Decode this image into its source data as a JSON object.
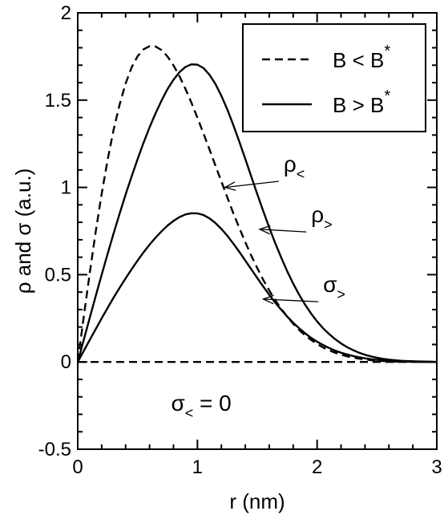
{
  "chart_data": {
    "type": "line",
    "title": "",
    "xlabel": "r (nm)",
    "ylabel": "ρ and σ (a.u.)",
    "xlim": [
      0,
      3
    ],
    "ylim": [
      -0.5,
      2
    ],
    "xticks": [
      0,
      1,
      2,
      3
    ],
    "xtick_labels": [
      "0",
      "1",
      "2",
      "3"
    ],
    "yticks": [
      -0.5,
      0,
      0.5,
      1,
      1.5,
      2
    ],
    "ytick_labels": [
      "-0.5",
      "0",
      "0.5",
      "1",
      "1.5",
      "2"
    ],
    "grid": false,
    "legend_position": "top-right",
    "series": [
      {
        "name": "B < B*",
        "style": "dashed",
        "color": "#000000",
        "x": [
          0,
          0.05,
          0.1,
          0.15,
          0.2,
          0.25,
          0.3,
          0.35,
          0.4,
          0.45,
          0.5,
          0.55,
          0.6,
          0.65,
          0.7,
          0.75,
          0.8,
          0.85,
          0.9,
          0.95,
          1.0,
          1.05,
          1.1,
          1.15,
          1.2,
          1.25,
          1.3,
          1.35,
          1.4,
          1.45,
          1.5,
          1.55,
          1.6,
          1.65,
          1.7,
          1.75,
          1.8,
          1.85,
          1.9,
          1.95,
          2.0,
          2.05,
          2.1,
          2.15,
          2.2,
          2.25,
          2.3,
          2.35,
          2.4,
          2.45,
          2.5,
          2.55,
          2.6,
          2.65,
          2.7,
          2.75,
          2.8,
          2.85,
          2.9,
          2.95,
          3.0
        ],
        "y": [
          0.0,
          0.258,
          0.508,
          0.746,
          0.964,
          1.159,
          1.331,
          1.475,
          1.595,
          1.687,
          1.751,
          1.791,
          1.809,
          1.807,
          1.787,
          1.75,
          1.699,
          1.637,
          1.564,
          1.485,
          1.399,
          1.31,
          1.219,
          1.126,
          1.034,
          0.942,
          0.852,
          0.768,
          0.686,
          0.609,
          0.538,
          0.47,
          0.41,
          0.354,
          0.304,
          0.26,
          0.219,
          0.183,
          0.152,
          0.126,
          0.103,
          0.083,
          0.067,
          0.053,
          0.042,
          0.032,
          0.025,
          0.019,
          0.014,
          0.01,
          0.007,
          0.005,
          0.004,
          0.002,
          0.002,
          0.001,
          0.001,
          0.0,
          0.0,
          0.0,
          0.0
        ]
      },
      {
        "name": "B > B*",
        "style": "solid",
        "color": "#000000",
        "x": [
          0,
          0.05,
          0.1,
          0.15,
          0.2,
          0.25,
          0.3,
          0.35,
          0.4,
          0.45,
          0.5,
          0.55,
          0.6,
          0.65,
          0.7,
          0.75,
          0.8,
          0.85,
          0.9,
          0.95,
          1.0,
          1.05,
          1.1,
          1.15,
          1.2,
          1.25,
          1.3,
          1.35,
          1.4,
          1.45,
          1.5,
          1.55,
          1.6,
          1.65,
          1.7,
          1.75,
          1.8,
          1.85,
          1.9,
          1.95,
          2.0,
          2.05,
          2.1,
          2.15,
          2.2,
          2.25,
          2.3,
          2.35,
          2.4,
          2.45,
          2.5,
          2.55,
          2.6,
          2.65,
          2.7,
          2.75,
          2.8,
          2.85,
          2.9,
          2.95,
          3.0
        ],
        "y": [
          0.0,
          0.126,
          0.252,
          0.377,
          0.5,
          0.62,
          0.737,
          0.85,
          0.959,
          1.062,
          1.162,
          1.256,
          1.344,
          1.424,
          1.497,
          1.563,
          1.617,
          1.66,
          1.69,
          1.705,
          1.703,
          1.684,
          1.646,
          1.593,
          1.525,
          1.446,
          1.357,
          1.262,
          1.163,
          1.062,
          0.962,
          0.864,
          0.77,
          0.681,
          0.598,
          0.52,
          0.449,
          0.385,
          0.328,
          0.277,
          0.232,
          0.193,
          0.16,
          0.131,
          0.106,
          0.085,
          0.068,
          0.053,
          0.041,
          0.032,
          0.024,
          0.018,
          0.013,
          0.01,
          0.007,
          0.005,
          0.004,
          0.003,
          0.002,
          0.001,
          0.0
        ]
      },
      {
        "name": "σ>",
        "style": "solid",
        "color": "#000000",
        "x": [
          0,
          0.05,
          0.1,
          0.15,
          0.2,
          0.25,
          0.3,
          0.35,
          0.4,
          0.45,
          0.5,
          0.55,
          0.6,
          0.65,
          0.7,
          0.75,
          0.8,
          0.85,
          0.9,
          0.95,
          1.0,
          1.05,
          1.1,
          1.15,
          1.2,
          1.25,
          1.3,
          1.35,
          1.4,
          1.45,
          1.5,
          1.55,
          1.6,
          1.65,
          1.7,
          1.75,
          1.8,
          1.85,
          1.9,
          1.95,
          2.0,
          2.05,
          2.1,
          2.15,
          2.2,
          2.25,
          2.3,
          2.35,
          2.4,
          2.45,
          2.5,
          2.55,
          2.6,
          2.65,
          2.7,
          2.75,
          2.8,
          2.85,
          2.9,
          2.95,
          3.0
        ],
        "y": [
          0.0,
          0.063,
          0.126,
          0.188,
          0.25,
          0.31,
          0.369,
          0.425,
          0.479,
          0.531,
          0.581,
          0.628,
          0.672,
          0.712,
          0.748,
          0.781,
          0.808,
          0.83,
          0.845,
          0.852,
          0.851,
          0.842,
          0.823,
          0.796,
          0.762,
          0.723,
          0.678,
          0.631,
          0.581,
          0.531,
          0.481,
          0.432,
          0.385,
          0.34,
          0.299,
          0.26,
          0.225,
          0.193,
          0.164,
          0.138,
          0.116,
          0.097,
          0.08,
          0.065,
          0.053,
          0.043,
          0.034,
          0.027,
          0.021,
          0.016,
          0.012,
          0.009,
          0.007,
          0.005,
          0.004,
          0.003,
          0.002,
          0.001,
          0.001,
          0.001,
          0.0
        ]
      },
      {
        "name": "σ< = 0",
        "style": "dashed",
        "color": "#000000",
        "x": [
          0,
          3
        ],
        "y": [
          0,
          0
        ]
      }
    ],
    "legend": [
      {
        "label_main": "B < B",
        "label_sup": "*",
        "style": "dashed"
      },
      {
        "label_main": "B > B",
        "label_sup": "*",
        "style": "solid"
      }
    ],
    "annotations": [
      {
        "id": "rho-less",
        "main": "ρ",
        "sub": "<",
        "text_at": [
          1.72,
          1.09
        ],
        "arrow_to": [
          1.23,
          1.0
        ]
      },
      {
        "id": "rho-greater",
        "main": "ρ",
        "sub": ">",
        "text_at": [
          1.95,
          0.8
        ],
        "arrow_to": [
          1.52,
          0.76
        ]
      },
      {
        "id": "sigma-greater",
        "main": "σ",
        "sub": ">",
        "text_at": [
          2.05,
          0.4
        ],
        "arrow_to": [
          1.55,
          0.36
        ]
      },
      {
        "id": "sigma-less",
        "main": "σ",
        "sub": "<",
        "tail": " = 0",
        "text_at": [
          0.78,
          -0.28
        ]
      }
    ]
  }
}
